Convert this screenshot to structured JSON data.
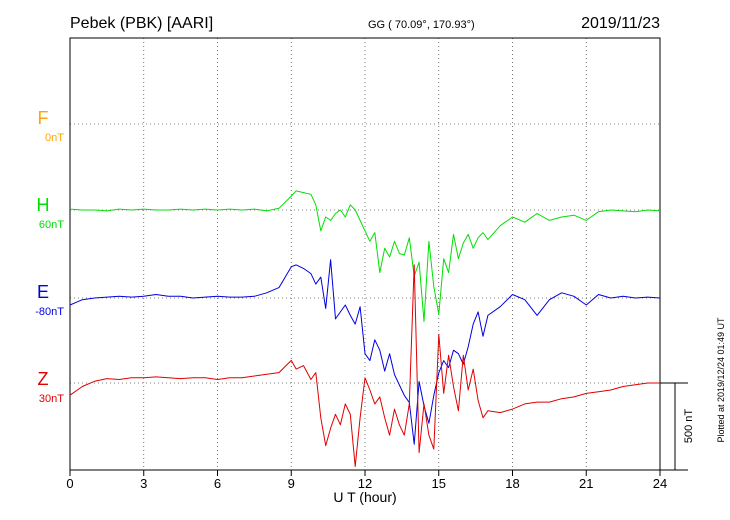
{
  "header": {
    "station": "Pebek (PBK)  [AARI]",
    "coords": "GG ( 70.09°, 170.93°)",
    "date": "2019/11/23"
  },
  "footer": {
    "plotted": "Plotted at 2019/12/24 01:49 UT"
  },
  "chart_data": {
    "type": "line",
    "xlabel": "U T (hour)",
    "xlim": [
      0,
      24
    ],
    "xticks": [
      "0",
      "3",
      "6",
      "9",
      "12",
      "15",
      "18",
      "21",
      "24"
    ],
    "scale_bar_label": "500 nT",
    "scale_bar_nT": 500,
    "grid": true,
    "series": [
      {
        "name": "F",
        "offset_label": "0nT",
        "color": "#ffa500",
        "x": [],
        "y": []
      },
      {
        "name": "H",
        "offset_label": "60nT",
        "color": "#00e000",
        "x": [
          0,
          0.5,
          1,
          1.5,
          2,
          2.5,
          3,
          3.5,
          4,
          4.5,
          5,
          5.5,
          6,
          6.5,
          7,
          7.5,
          8,
          8.5,
          9,
          9.2,
          9.5,
          9.8,
          10,
          10.2,
          10.4,
          10.6,
          10.8,
          11,
          11.2,
          11.4,
          11.6,
          11.8,
          12,
          12.2,
          12.4,
          12.6,
          12.8,
          13,
          13.2,
          13.4,
          13.6,
          13.8,
          14,
          14.2,
          14.4,
          14.6,
          14.8,
          15,
          15.2,
          15.4,
          15.6,
          15.8,
          16,
          16.2,
          16.4,
          16.6,
          16.8,
          17,
          17.5,
          18,
          18.5,
          19,
          19.5,
          20,
          20.5,
          21,
          21.5,
          22,
          22.5,
          23,
          23.5,
          24
        ],
        "y": [
          5,
          0,
          0,
          -5,
          5,
          0,
          5,
          0,
          0,
          5,
          0,
          5,
          0,
          5,
          0,
          5,
          -5,
          10,
          80,
          110,
          100,
          90,
          30,
          -120,
          -40,
          -60,
          -20,
          0,
          -40,
          30,
          0,
          -60,
          -120,
          -180,
          -130,
          -360,
          -220,
          -270,
          -180,
          -250,
          -260,
          -160,
          -380,
          -300,
          -640,
          -180,
          -440,
          -600,
          -280,
          -360,
          -140,
          -280,
          -190,
          -140,
          -220,
          -160,
          -130,
          -170,
          -90,
          -40,
          -70,
          -20,
          -60,
          -40,
          -30,
          -60,
          -10,
          0,
          -5,
          -10,
          0,
          -5
        ]
      },
      {
        "name": "E",
        "offset_label": "-80nT",
        "color": "#0000e0",
        "x": [
          0,
          0.5,
          1,
          1.5,
          2,
          2.5,
          3,
          3.5,
          4,
          4.5,
          5,
          5.5,
          6,
          6.5,
          7,
          7.5,
          8,
          8.5,
          9,
          9.2,
          9.5,
          9.8,
          10,
          10.2,
          10.4,
          10.6,
          10.8,
          11,
          11.2,
          11.4,
          11.6,
          11.8,
          12,
          12.2,
          12.4,
          12.6,
          12.8,
          13,
          13.2,
          13.4,
          13.6,
          13.8,
          14,
          14.2,
          14.4,
          14.6,
          14.8,
          15,
          15.2,
          15.4,
          15.6,
          15.8,
          16,
          16.2,
          16.4,
          16.6,
          16.8,
          17,
          17.5,
          18,
          18.5,
          19,
          19.5,
          20,
          20.5,
          21,
          21.5,
          22,
          22.5,
          23,
          23.5,
          24
        ],
        "y": [
          -40,
          -10,
          0,
          5,
          10,
          5,
          10,
          20,
          10,
          10,
          0,
          5,
          10,
          5,
          5,
          10,
          30,
          60,
          180,
          190,
          170,
          140,
          80,
          120,
          -60,
          220,
          -120,
          -80,
          -40,
          -100,
          -150,
          -50,
          -320,
          -360,
          -240,
          -300,
          -420,
          -320,
          -440,
          -500,
          -560,
          -600,
          -840,
          -480,
          -620,
          -720,
          -560,
          -430,
          -360,
          -400,
          -300,
          -320,
          -380,
          -280,
          -150,
          -80,
          -220,
          -100,
          -50,
          20,
          -10,
          -100,
          -10,
          30,
          10,
          -40,
          20,
          0,
          10,
          0,
          5,
          0
        ]
      },
      {
        "name": "Z",
        "offset_label": "30nT",
        "color": "#e00000",
        "x": [
          0,
          0.5,
          1,
          1.5,
          2,
          2.5,
          3,
          3.5,
          4,
          4.5,
          5,
          5.5,
          6,
          6.5,
          7,
          7.5,
          8,
          8.5,
          9,
          9.2,
          9.5,
          9.8,
          10,
          10.2,
          10.4,
          10.6,
          10.8,
          11,
          11.2,
          11.4,
          11.6,
          11.8,
          12,
          12.2,
          12.4,
          12.6,
          12.8,
          13,
          13.2,
          13.4,
          13.6,
          13.8,
          14,
          14.2,
          14.4,
          14.6,
          14.8,
          15,
          15.2,
          15.4,
          15.6,
          15.8,
          16,
          16.2,
          16.4,
          16.6,
          16.8,
          17,
          17.5,
          18,
          18.5,
          19,
          19.5,
          20,
          20.5,
          21,
          21.5,
          22,
          22.5,
          23,
          23.5,
          24
        ],
        "y": [
          -70,
          -20,
          10,
          25,
          20,
          30,
          30,
          35,
          30,
          25,
          30,
          30,
          20,
          30,
          30,
          40,
          50,
          60,
          130,
          80,
          100,
          20,
          60,
          -200,
          -360,
          -260,
          -180,
          -240,
          -120,
          -180,
          -480,
          -200,
          30,
          -40,
          -120,
          -80,
          -200,
          -300,
          -150,
          -240,
          -300,
          -120,
          680,
          -400,
          -120,
          -300,
          -380,
          280,
          -60,
          160,
          -20,
          -160,
          160,
          -40,
          80,
          -100,
          -200,
          -160,
          -170,
          -150,
          -120,
          -110,
          -110,
          -90,
          -80,
          -60,
          -50,
          -40,
          -20,
          -10,
          0,
          0
        ]
      }
    ]
  }
}
